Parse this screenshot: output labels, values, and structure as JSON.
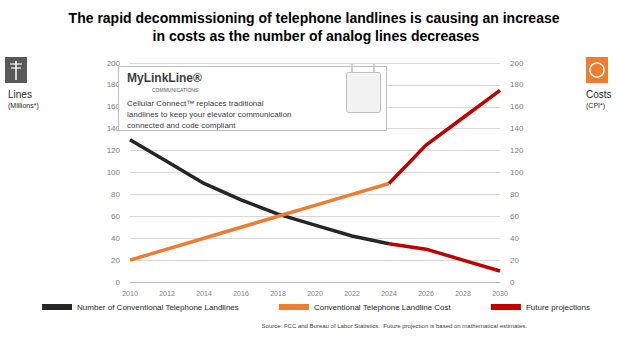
{
  "chart_data": {
    "type": "line",
    "title": "The rapid decommissioning of telephone landlines is causing an increase in costs as the number of analog lines decreases",
    "y_label": "Lines",
    "y_label_note": "(Millions*)",
    "y2_label": "Costs",
    "y2_label_note": "(CPI*)",
    "inset": {
      "logo": "MyLinkLine®",
      "logo_sub": "COMMUNICATIONS",
      "text": "Cellular Connect™ replaces traditional landlines to keep your elevator communication connected and code compliant"
    },
    "source": "Source: FCC and Bureau of Labor Statistics.  Future projection is based on mathematical estimates.",
    "x": [
      2010,
      2012,
      2014,
      2016,
      2018,
      2020,
      2022,
      2024,
      2026,
      2028,
      2030
    ],
    "xlim": [
      2010,
      2030
    ],
    "xticks": [
      2010,
      2012,
      2014,
      2016,
      2018,
      2020,
      2022,
      2024,
      2026,
      2028,
      2030
    ],
    "ylim": [
      0,
      200
    ],
    "yticks": [
      0,
      20,
      40,
      60,
      80,
      100,
      120,
      140,
      160,
      180,
      200
    ],
    "y2lim": [
      0,
      200
    ],
    "y2ticks": [
      0,
      20,
      40,
      60,
      80,
      100,
      120,
      140,
      160,
      180,
      200
    ],
    "grid": true,
    "legend": "bottom",
    "series": [
      {
        "name": "Number of Conventional Telephone Landlines",
        "color": "#262626",
        "values": [
          130,
          110,
          90,
          75,
          62,
          52,
          42,
          35,
          null,
          null,
          null
        ]
      },
      {
        "name": "Conventional Telephone Landline Cost",
        "color": "#ed7d31",
        "axis": "y2",
        "values": [
          20,
          30,
          40,
          50,
          60,
          70,
          80,
          90,
          null,
          null,
          null
        ]
      },
      {
        "name": "Future projections",
        "color": "#c00000",
        "values": [
          null,
          null,
          null,
          null,
          null,
          null,
          null,
          35,
          30,
          20,
          10
        ]
      },
      {
        "name": "Future projections",
        "color": "#c00000",
        "axis": "y2",
        "values": [
          null,
          null,
          null,
          null,
          null,
          null,
          null,
          90,
          125,
          150,
          175
        ]
      }
    ]
  }
}
